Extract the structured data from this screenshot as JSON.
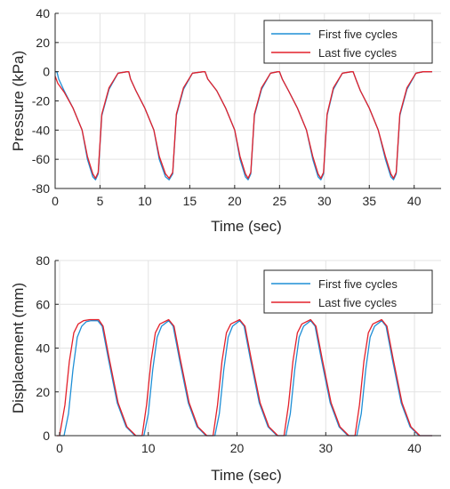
{
  "colors": {
    "first": "#1f8fd6",
    "last": "#e3212b"
  },
  "chart_data": [
    {
      "type": "line",
      "xlabel": "Time (sec)",
      "ylabel": "Pressure (kPa)",
      "xlim": [
        0,
        43
      ],
      "ylim": [
        -80,
        40
      ],
      "xticks": [
        0,
        5,
        10,
        15,
        20,
        25,
        30,
        35,
        40
      ],
      "yticks": [
        -80,
        -60,
        -40,
        -20,
        0,
        20,
        40
      ],
      "grid": true,
      "legend_position": "top-right",
      "series": [
        {
          "name": "First five cycles",
          "color": "#1f8fd6",
          "x": [
            0,
            0.2,
            0.4,
            1,
            2,
            3,
            3.6,
            4.2,
            4.5,
            4.8,
            5.2,
            6,
            7,
            8,
            8.2,
            8.4,
            9,
            10,
            11,
            11.6,
            12.3,
            12.7,
            13.1,
            13.5,
            14.3,
            15.3,
            16.5,
            16.7,
            17,
            18,
            19,
            20,
            20.6,
            21.2,
            21.5,
            21.8,
            22.2,
            23,
            24,
            24.8,
            25,
            25.3,
            26,
            27,
            28,
            28.7,
            29.3,
            29.6,
            29.9,
            30.3,
            31,
            32,
            33,
            33.2,
            33.5,
            34,
            35,
            36,
            36.8,
            37.4,
            37.7,
            38,
            38.4,
            39.2,
            40.2,
            41,
            42
          ],
          "y": [
            0,
            0,
            -5,
            -13,
            -25,
            -40,
            -60,
            -72,
            -74,
            -70,
            -30,
            -12,
            -1,
            0,
            0,
            -5,
            -13,
            -25,
            -40,
            -60,
            -72,
            -74,
            -70,
            -30,
            -12,
            -1,
            0,
            0,
            -5,
            -13,
            -25,
            -40,
            -60,
            -72,
            -74,
            -70,
            -30,
            -12,
            -1,
            0,
            0,
            -5,
            -13,
            -25,
            -40,
            -60,
            -72,
            -74,
            -70,
            -30,
            -12,
            -1,
            0,
            0,
            -5,
            -13,
            -25,
            -40,
            -60,
            -72,
            -74,
            -70,
            -30,
            -12,
            -1,
            0,
            0
          ]
        },
        {
          "name": "Last five cycles",
          "color": "#e3212b",
          "x": [
            0,
            0.3,
            1,
            2,
            3,
            3.6,
            4.2,
            4.5,
            4.8,
            5.2,
            6,
            7,
            8,
            8.2,
            8.4,
            9,
            10,
            11,
            11.6,
            12.3,
            12.7,
            13.1,
            13.5,
            14.3,
            15.3,
            16.5,
            16.7,
            17,
            18,
            19,
            20,
            20.6,
            21.2,
            21.5,
            21.8,
            22.2,
            23,
            24,
            24.8,
            25,
            25.3,
            26,
            27,
            28,
            28.7,
            29.3,
            29.6,
            29.9,
            30.3,
            31,
            32,
            33,
            33.2,
            33.5,
            34,
            35,
            36,
            36.8,
            37.4,
            37.7,
            38,
            38.4,
            39.2,
            40.2,
            41,
            42
          ],
          "y": [
            -3,
            -8,
            -14,
            -25,
            -40,
            -58,
            -70,
            -73,
            -69,
            -29,
            -11,
            -1,
            0,
            0,
            -5,
            -13,
            -25,
            -40,
            -58,
            -70,
            -73,
            -69,
            -29,
            -11,
            -1,
            0,
            0,
            -5,
            -13,
            -25,
            -40,
            -58,
            -70,
            -73,
            -69,
            -29,
            -11,
            -1,
            0,
            0,
            -5,
            -13,
            -25,
            -40,
            -58,
            -70,
            -73,
            -69,
            -29,
            -11,
            -1,
            0,
            0,
            -5,
            -13,
            -25,
            -40,
            -58,
            -70,
            -73,
            -69,
            -29,
            -11,
            -1,
            0,
            0
          ]
        }
      ]
    },
    {
      "type": "line",
      "xlabel": "Time (sec)",
      "ylabel": "Displacement (mm)",
      "xlim": [
        -0.5,
        43
      ],
      "ylim": [
        0,
        80
      ],
      "xticks": [
        0,
        10,
        20,
        30,
        40
      ],
      "yticks": [
        0,
        20,
        40,
        60,
        80
      ],
      "grid": true,
      "legend_position": "top-right",
      "series": [
        {
          "name": "First five cycles",
          "color": "#1f8fd6",
          "x": [
            0,
            0.5,
            1,
            1.5,
            2,
            2.5,
            3,
            3.5,
            4.3,
            4.8,
            5.5,
            6.5,
            7.5,
            8.5,
            9.5,
            10,
            10.5,
            11,
            11.5,
            12.3,
            12.8,
            13.5,
            14.5,
            15.5,
            16.5,
            17.5,
            18,
            18.5,
            19,
            19.5,
            20.3,
            20.8,
            21.5,
            22.5,
            23.5,
            24.5,
            25.5,
            26,
            26.5,
            27,
            27.5,
            28.3,
            28.8,
            29.5,
            30.5,
            31.5,
            32.5,
            33.5,
            34,
            34.5,
            35,
            35.5,
            36.3,
            36.8,
            37.5,
            38.5,
            39.5,
            40.5,
            42
          ],
          "y": [
            0,
            0,
            10,
            30,
            45,
            50,
            52,
            52.5,
            52.5,
            50,
            35,
            15,
            4,
            0,
            0,
            10,
            30,
            45,
            50,
            52.5,
            50,
            35,
            15,
            4,
            0,
            0,
            10,
            30,
            45,
            50,
            52.5,
            50,
            35,
            15,
            4,
            0,
            0,
            10,
            30,
            45,
            50,
            52.5,
            50,
            35,
            15,
            4,
            0,
            0,
            10,
            30,
            45,
            50,
            52.5,
            50,
            35,
            15,
            4,
            0,
            0
          ]
        },
        {
          "name": "Last five cycles",
          "color": "#e3212b",
          "x": [
            -0.3,
            0,
            0.6,
            1.1,
            1.6,
            2.1,
            2.7,
            3.4,
            4.4,
            4.9,
            5.6,
            6.6,
            7.6,
            8.6,
            9.3,
            9.8,
            10.3,
            10.8,
            11.3,
            12.3,
            12.9,
            13.6,
            14.6,
            15.6,
            16.6,
            17.3,
            17.8,
            18.3,
            18.8,
            19.3,
            20.3,
            20.9,
            21.6,
            22.6,
            23.6,
            24.6,
            25.3,
            25.8,
            26.3,
            26.8,
            27.3,
            28.3,
            28.9,
            29.6,
            30.6,
            31.6,
            32.6,
            33.3,
            33.8,
            34.3,
            34.8,
            35.3,
            36.3,
            36.9,
            37.6,
            38.6,
            39.6,
            40.6,
            42
          ],
          "y": [
            0,
            0,
            14,
            34,
            47,
            51,
            52.5,
            53,
            53,
            50,
            35,
            15,
            4,
            0,
            0,
            14,
            34,
            47,
            51,
            53,
            50,
            35,
            15,
            4,
            0,
            0,
            14,
            34,
            47,
            51,
            53,
            50,
            35,
            15,
            4,
            0,
            0,
            14,
            34,
            47,
            51,
            53,
            50,
            35,
            15,
            4,
            0,
            0,
            14,
            34,
            47,
            51,
            53,
            50,
            35,
            15,
            4,
            0,
            0
          ]
        }
      ]
    }
  ]
}
